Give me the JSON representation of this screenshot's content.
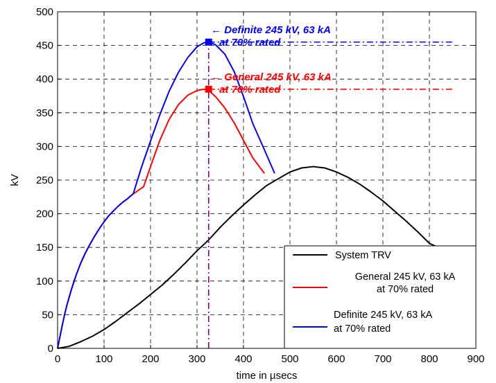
{
  "chart_data": {
    "type": "line",
    "title": "",
    "xlabel": "time in µsecs",
    "ylabel": "kV",
    "xlim": [
      0,
      900
    ],
    "ylim": [
      0,
      500
    ],
    "xticks": [
      0,
      100,
      200,
      300,
      400,
      500,
      600,
      700,
      800,
      900
    ],
    "yticks": [
      0,
      50,
      100,
      150,
      200,
      250,
      300,
      350,
      400,
      450,
      500
    ],
    "grid": true,
    "legend_position": "bottom-right",
    "series": [
      {
        "name": "System TRV",
        "legend_lines": [
          "System TRV"
        ],
        "color": "#000000",
        "style": "solid",
        "x": [
          0,
          25,
          50,
          75,
          100,
          125,
          150,
          175,
          200,
          225,
          250,
          275,
          300,
          325,
          350,
          375,
          400,
          425,
          450,
          475,
          500,
          525,
          550,
          575,
          600,
          625,
          650,
          675,
          700,
          725,
          750,
          775,
          800,
          825,
          850
        ],
        "y": [
          0,
          3,
          10,
          18,
          28,
          40,
          53,
          66,
          80,
          94,
          110,
          127,
          145,
          161,
          180,
          197,
          213,
          228,
          242,
          252,
          262,
          268,
          270,
          268,
          262,
          254,
          244,
          232,
          219,
          204,
          189,
          173,
          156,
          148,
          140
        ]
      },
      {
        "name": "General 245 kV, 63 kA at 70% rated",
        "legend_lines": [
          "General 245 kV, 63 kA",
          "at 70% rated"
        ],
        "color": "#ff0000",
        "style": "solid",
        "x": [
          0,
          5,
          10,
          15,
          20,
          30,
          40,
          50,
          60,
          70,
          80,
          90,
          100,
          110,
          120,
          130,
          140,
          150,
          160,
          170,
          185,
          200,
          220,
          240,
          260,
          280,
          300,
          315,
          325,
          340,
          360,
          380,
          400,
          420,
          445
        ],
        "y": [
          0,
          17,
          34,
          50,
          64,
          88,
          109,
          127,
          142,
          155,
          167,
          178,
          188,
          197,
          204,
          211,
          217,
          222,
          228,
          233,
          240,
          270,
          309,
          340,
          362,
          376,
          383,
          385,
          383,
          374,
          357,
          335,
          309,
          283,
          260
        ]
      },
      {
        "name": "Definite 245 kV, 63 kA at 70% rated",
        "legend_lines": [
          "Definite 245 kV, 63 kA",
          "at 70% rated"
        ],
        "color": "#0000ff",
        "style": "solid",
        "x": [
          0,
          5,
          10,
          15,
          20,
          30,
          40,
          50,
          60,
          70,
          80,
          90,
          100,
          110,
          120,
          130,
          140,
          150,
          163,
          180,
          200,
          220,
          240,
          260,
          280,
          300,
          315,
          325,
          340,
          360,
          380,
          400,
          420,
          445,
          467
        ],
        "y": [
          0,
          17,
          34,
          50,
          64,
          88,
          109,
          127,
          142,
          155,
          167,
          178,
          188,
          197,
          204,
          211,
          217,
          222,
          230,
          268,
          308,
          347,
          382,
          410,
          432,
          448,
          454,
          455,
          451,
          437,
          411,
          374,
          334,
          295,
          260
        ]
      }
    ],
    "reference_lines": [
      {
        "kind": "horizontal",
        "y": 455,
        "x_from": 325,
        "x_to": 850,
        "color": "#0000ff",
        "style": "dashdot"
      },
      {
        "kind": "horizontal",
        "y": 385,
        "x_from": 325,
        "x_to": 850,
        "color": "#ff0000",
        "style": "dashdot"
      },
      {
        "kind": "vertical",
        "x": 325,
        "y_from": 0,
        "y_to": 455,
        "color": "#800080",
        "style": "dashdot"
      }
    ],
    "markers": [
      {
        "x": 325,
        "y": 455,
        "color": "#0000ff",
        "shape": "square"
      },
      {
        "x": 325,
        "y": 385,
        "color": "#ff0000",
        "shape": "square"
      }
    ],
    "annotations": [
      {
        "lines": [
          "← Definite 245 kV, 63 kA",
          "at 70% rated"
        ],
        "x": 330,
        "y": 468,
        "color": "#0000ff"
      },
      {
        "lines": [
          "← General 245 kV, 63 kA",
          "at 70% rated"
        ],
        "x": 330,
        "y": 398,
        "color": "#ff0000"
      }
    ]
  }
}
